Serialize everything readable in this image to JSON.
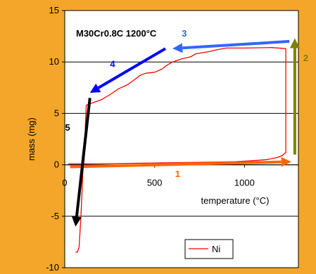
{
  "chart_data": {
    "type": "line",
    "annotation": "M30Cr0.8C 1200°C",
    "xlabel": "temperature (°C)",
    "ylabel": "mass (mg)",
    "xlim": [
      0,
      1300
    ],
    "ylim": [
      -10,
      15
    ],
    "xticks": [
      "0",
      "500",
      "1000"
    ],
    "xtick_values": [
      0,
      500,
      1000
    ],
    "yticks": [
      "-10",
      "-5",
      "0",
      "5",
      "10",
      "15"
    ],
    "ytick_values": [
      -10,
      -5,
      0,
      5,
      10,
      15
    ],
    "grid": "horizontal",
    "legend_position": "bottom-right",
    "series": [
      {
        "name": "Ni",
        "color": "#ff0000",
        "points": [
          [
            20,
            0.1
          ],
          [
            200,
            0.1
          ],
          [
            400,
            0.15
          ],
          [
            600,
            0.2
          ],
          [
            800,
            0.25
          ],
          [
            950,
            0.3
          ],
          [
            1050,
            0.4
          ],
          [
            1120,
            0.5
          ],
          [
            1180,
            0.7
          ],
          [
            1210,
            0.9
          ],
          [
            1230,
            1.2
          ],
          [
            1230,
            2.0
          ],
          [
            1230,
            5.0
          ],
          [
            1230,
            8.0
          ],
          [
            1230,
            11.3
          ],
          [
            1150,
            11.4
          ],
          [
            1000,
            11.35
          ],
          [
            900,
            11.35
          ],
          [
            850,
            11.2
          ],
          [
            800,
            11.0
          ],
          [
            730,
            10.8
          ],
          [
            700,
            10.5
          ],
          [
            650,
            10.3
          ],
          [
            600,
            10.0
          ],
          [
            570,
            9.7
          ],
          [
            540,
            9.3
          ],
          [
            500,
            9.0
          ],
          [
            450,
            8.9
          ],
          [
            420,
            8.7
          ],
          [
            390,
            8.3
          ],
          [
            350,
            7.8
          ],
          [
            300,
            7.4
          ],
          [
            250,
            6.8
          ],
          [
            200,
            6.3
          ],
          [
            150,
            6.0
          ],
          [
            120,
            5.8
          ],
          [
            115,
            4.0
          ],
          [
            112,
            2.0
          ],
          [
            108,
            0.5
          ],
          [
            105,
            0.1
          ],
          [
            100,
            -1.0
          ],
          [
            95,
            -3.0
          ],
          [
            90,
            -5.0
          ],
          [
            85,
            -6.5
          ],
          [
            80,
            -8.0
          ],
          [
            70,
            -8.5
          ],
          [
            60,
            -8.5
          ]
        ]
      }
    ],
    "arrows": [
      {
        "label": "1",
        "color": "#ff6600",
        "from": [
          30,
          -0.2
        ],
        "to": [
          1260,
          0.3
        ]
      },
      {
        "label": "2",
        "color": "#808000",
        "from": [
          1280,
          1.0
        ],
        "to": [
          1280,
          12.3
        ]
      },
      {
        "label": "3",
        "color": "#3366ff",
        "from": [
          1250,
          12.0
        ],
        "to": [
          600,
          11.3
        ]
      },
      {
        "label": "4",
        "color": "#0000ff",
        "from": [
          560,
          11.3
        ],
        "to": [
          140,
          7.0
        ]
      },
      {
        "label": "5",
        "color": "#000000",
        "from": [
          140,
          6.5
        ],
        "to": [
          60,
          -6.0
        ]
      }
    ],
    "colors": {
      "background": "#f4a62a",
      "plot": "#ffffff",
      "gridline": "#000000"
    }
  }
}
